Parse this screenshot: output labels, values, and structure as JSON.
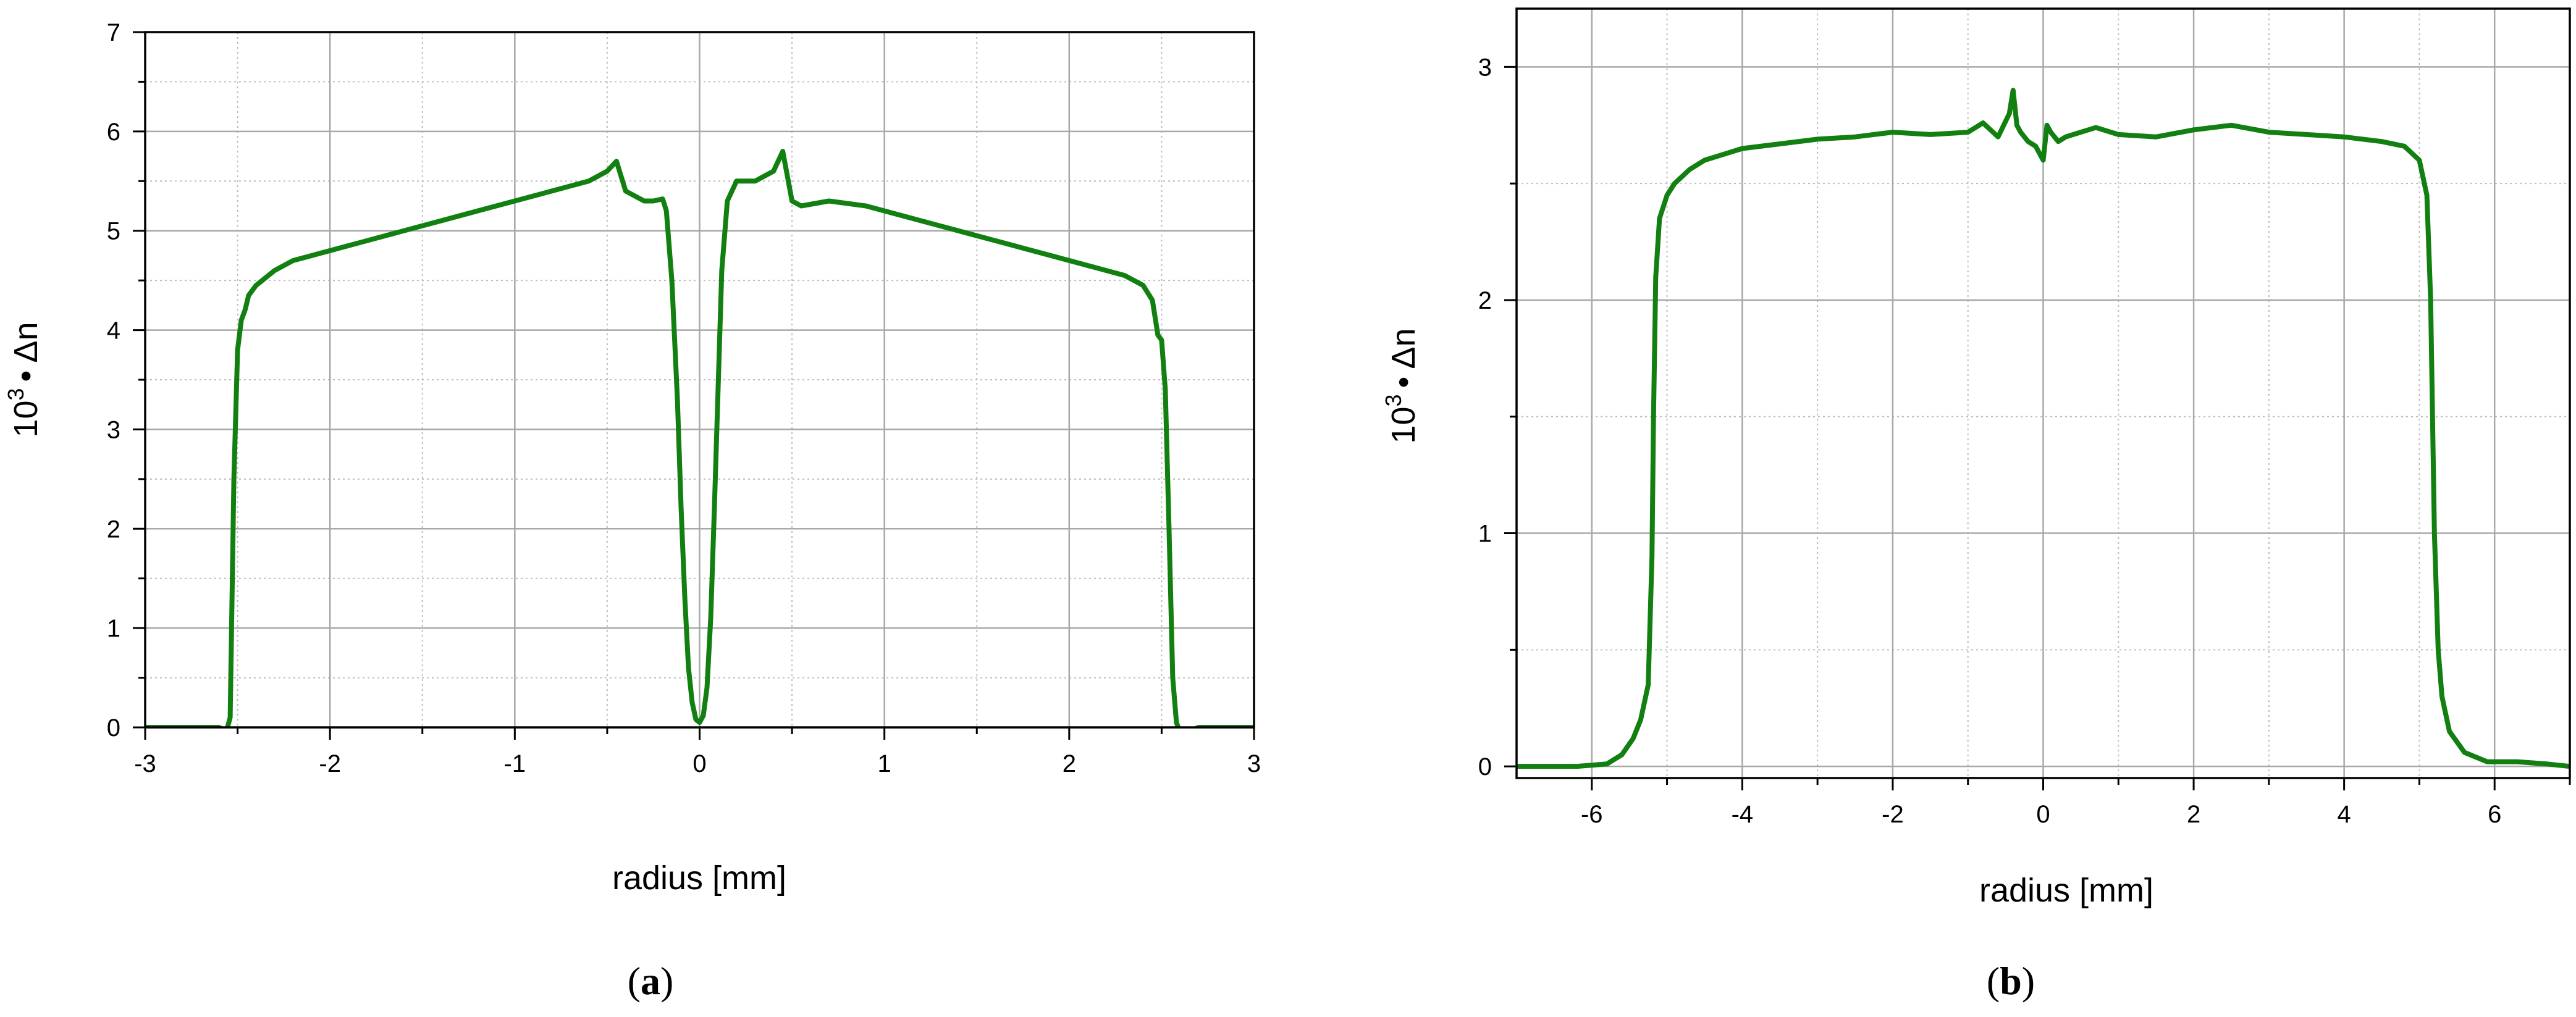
{
  "chart_data": [
    {
      "type": "line",
      "panel_label": "a",
      "xlabel": "radius  [mm]",
      "ylabel_base": "10",
      "ylabel_exp": "3",
      "ylabel_rest": "• Δn",
      "xlim": [
        -3,
        3
      ],
      "ylim": [
        0,
        7
      ],
      "xticks": [
        -3,
        -2,
        -1,
        0,
        1,
        2,
        3
      ],
      "xtick_labels": [
        "-3",
        "-2",
        "-1",
        "0",
        "1",
        "2",
        "3"
      ],
      "yticks": [
        0,
        1,
        2,
        3,
        4,
        5,
        6,
        7
      ],
      "ytick_labels": [
        "0",
        "1",
        "2",
        "3",
        "4",
        "5",
        "6",
        "7"
      ],
      "grid": true,
      "line_color": "#118011",
      "series": [
        {
          "x": [
            -3.0,
            -2.8,
            -2.7,
            -2.6,
            -2.56,
            -2.54,
            -2.52,
            -2.5,
            -2.48,
            -2.46,
            -2.44,
            -2.4,
            -2.3,
            -2.2,
            -2.0,
            -1.8,
            -1.6,
            -1.4,
            -1.2,
            -1.0,
            -0.8,
            -0.7,
            -0.6,
            -0.5,
            -0.45,
            -0.4,
            -0.3,
            -0.25,
            -0.2,
            -0.18,
            -0.15,
            -0.12,
            -0.1,
            -0.08,
            -0.06,
            -0.04,
            -0.02,
            0.0,
            0.02,
            0.04,
            0.06,
            0.08,
            0.1,
            0.12,
            0.15,
            0.2,
            0.3,
            0.4,
            0.45,
            0.5,
            0.55,
            0.7,
            0.9,
            1.1,
            1.3,
            1.5,
            1.7,
            1.9,
            2.1,
            2.3,
            2.4,
            2.45,
            2.48,
            2.5,
            2.52,
            2.54,
            2.56,
            2.58,
            2.6,
            2.62,
            2.7,
            2.8,
            3.0
          ],
          "y": [
            0.0,
            0.0,
            0.0,
            0.0,
            -0.04,
            0.1,
            2.5,
            3.8,
            4.1,
            4.2,
            4.35,
            4.45,
            4.6,
            4.7,
            4.8,
            4.9,
            5.0,
            5.1,
            5.2,
            5.3,
            5.4,
            5.45,
            5.5,
            5.6,
            5.7,
            5.4,
            5.3,
            5.3,
            5.32,
            5.2,
            4.5,
            3.3,
            2.2,
            1.3,
            0.6,
            0.25,
            0.08,
            0.05,
            0.12,
            0.4,
            1.1,
            2.2,
            3.4,
            4.6,
            5.3,
            5.5,
            5.5,
            5.6,
            5.8,
            5.3,
            5.25,
            5.3,
            5.25,
            5.15,
            5.05,
            4.95,
            4.85,
            4.75,
            4.65,
            4.55,
            4.45,
            4.3,
            3.95,
            3.9,
            3.4,
            2.0,
            0.5,
            0.05,
            -0.05,
            -0.06,
            0.0,
            0.0,
            0.0
          ]
        }
      ]
    },
    {
      "type": "line",
      "panel_label": "b",
      "xlabel": "radius [mm]",
      "ylabel_base": "10",
      "ylabel_exp": "3",
      "ylabel_rest": "• Δn",
      "xlim": [
        -7,
        7
      ],
      "ylim": [
        -0.05,
        3.25
      ],
      "xticks": [
        -6,
        -4,
        -2,
        0,
        2,
        4,
        6
      ],
      "xtick_labels": [
        "-6",
        "-4",
        "-2",
        "0",
        "2",
        "4",
        "6"
      ],
      "yticks": [
        0,
        1,
        2,
        3
      ],
      "ytick_labels": [
        "0",
        "1",
        "2",
        "3"
      ],
      "grid": true,
      "line_color": "#118011",
      "series": [
        {
          "x": [
            -7.0,
            -6.6,
            -6.2,
            -5.8,
            -5.6,
            -5.45,
            -5.35,
            -5.25,
            -5.2,
            -5.18,
            -5.15,
            -5.1,
            -5.0,
            -4.9,
            -4.7,
            -4.5,
            -4.2,
            -4.0,
            -3.5,
            -3.0,
            -2.5,
            -2.0,
            -1.5,
            -1.0,
            -0.8,
            -0.6,
            -0.45,
            -0.4,
            -0.35,
            -0.3,
            -0.2,
            -0.1,
            0.0,
            0.05,
            0.1,
            0.2,
            0.3,
            0.5,
            0.7,
            1.0,
            1.5,
            2.0,
            2.5,
            3.0,
            3.5,
            4.0,
            4.5,
            4.8,
            5.0,
            5.1,
            5.15,
            5.2,
            5.25,
            5.3,
            5.4,
            5.6,
            5.9,
            6.3,
            6.7,
            7.0
          ],
          "y": [
            0.0,
            0.0,
            0.0,
            0.01,
            0.05,
            0.12,
            0.2,
            0.35,
            0.9,
            1.5,
            2.1,
            2.35,
            2.45,
            2.5,
            2.56,
            2.6,
            2.63,
            2.65,
            2.67,
            2.69,
            2.7,
            2.72,
            2.71,
            2.72,
            2.76,
            2.7,
            2.8,
            2.9,
            2.75,
            2.72,
            2.68,
            2.66,
            2.6,
            2.75,
            2.72,
            2.68,
            2.7,
            2.72,
            2.74,
            2.71,
            2.7,
            2.73,
            2.75,
            2.72,
            2.71,
            2.7,
            2.68,
            2.66,
            2.6,
            2.45,
            2.0,
            1.0,
            0.5,
            0.3,
            0.15,
            0.06,
            0.02,
            0.02,
            0.01,
            0.0
          ]
        }
      ]
    }
  ]
}
